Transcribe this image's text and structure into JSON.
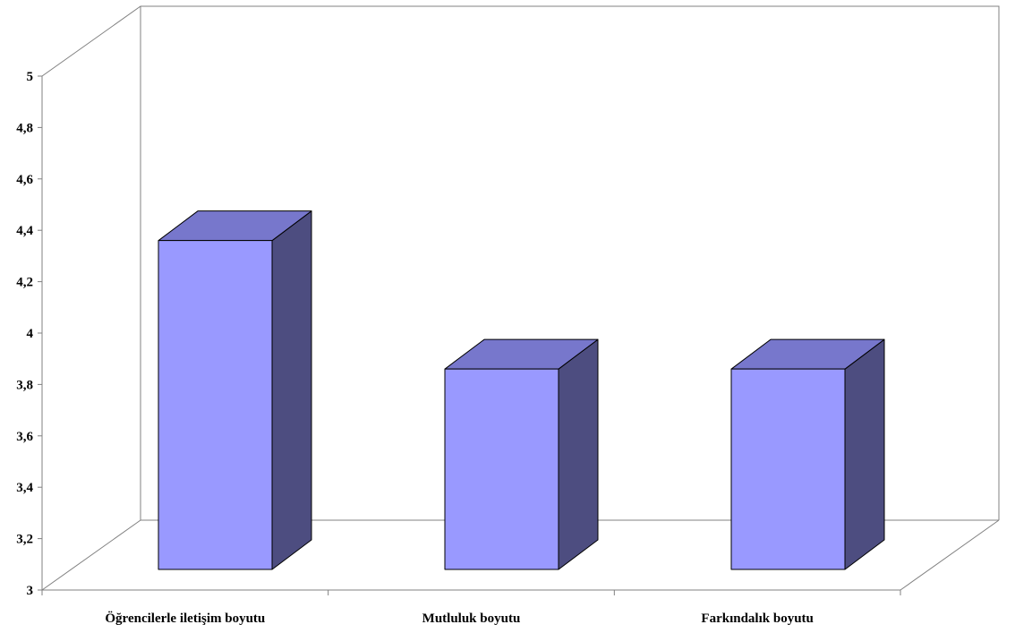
{
  "chart_data": {
    "type": "bar",
    "title": "",
    "xlabel": "",
    "ylabel": "",
    "categories": [
      "Öğrencilerle iletişim boyutu",
      "Mutluluk boyutu",
      "Farkındalık boyutu"
    ],
    "values": [
      4.36,
      3.86,
      3.86
    ],
    "ylim": [
      3,
      5
    ],
    "y_ticks": [
      "3",
      "3,2",
      "3,4",
      "3,6",
      "3,8",
      "4",
      "4,2",
      "4,4",
      "4,6",
      "4,8",
      "5"
    ],
    "grid": false,
    "legend": "none",
    "style": "3d-column",
    "colors": {
      "front": "#9999ff",
      "top": "#7777cc",
      "side": "#4d4d80",
      "outline": "#000000",
      "wall": "#808080"
    }
  }
}
